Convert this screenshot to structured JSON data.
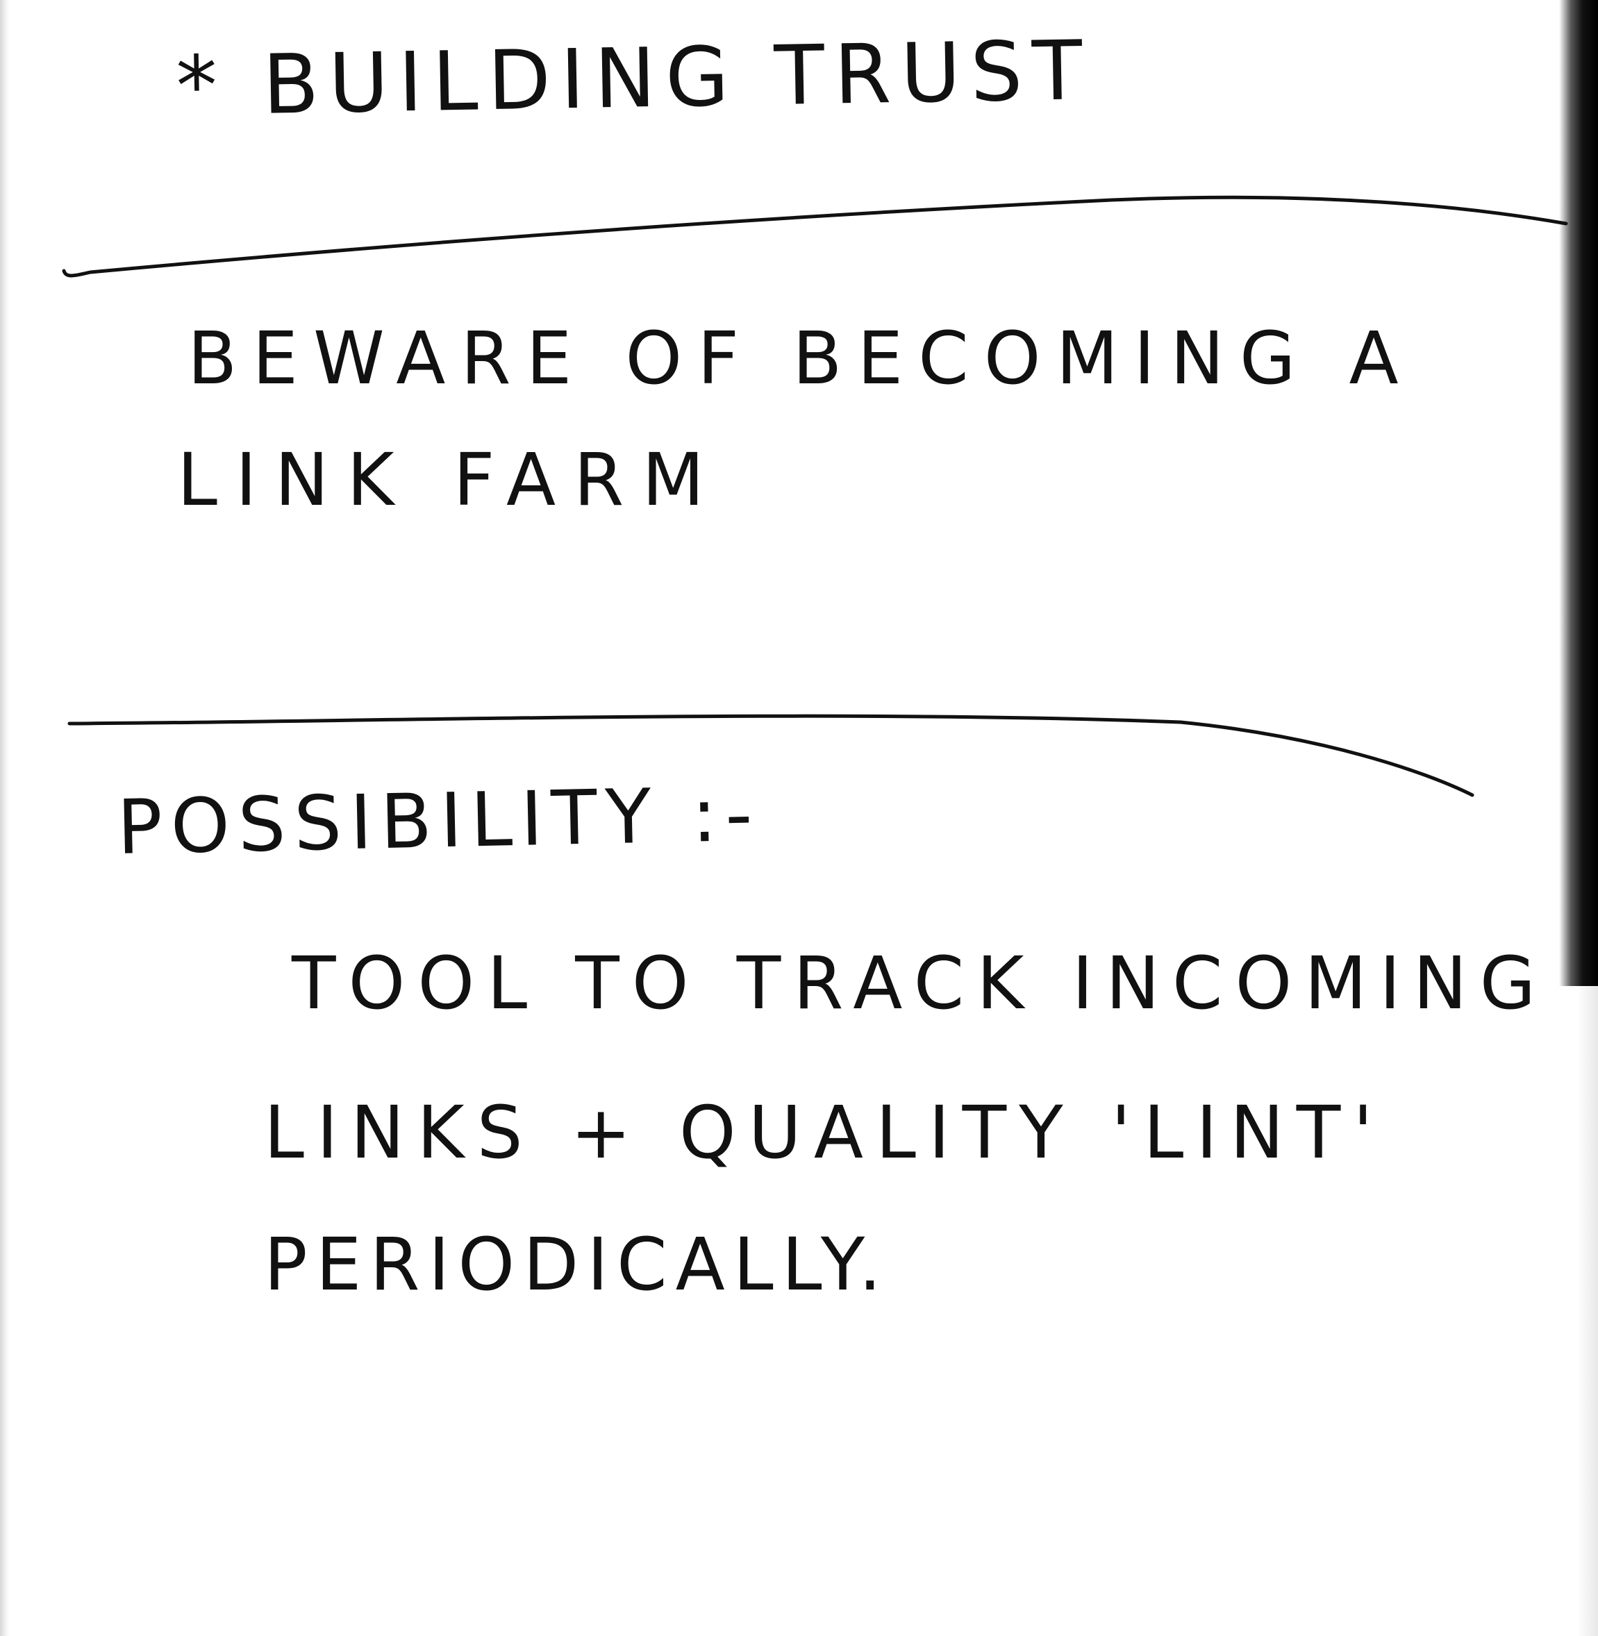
{
  "note": {
    "heading": "* BUILDING TRUST",
    "section1": {
      "line1": "BEWARE OF BECOMING A",
      "line2": "LINK FARM"
    },
    "section2": {
      "label": "POSSIBILITY :-",
      "line1": "TOOL TO TRACK INCOMING",
      "line2": "LINKS + QUALITY 'LINT'",
      "line3": "PERIODICALLY."
    }
  },
  "colors": {
    "ink": "#111111",
    "paper": "#ffffff",
    "edge_shadow": "#000000"
  }
}
